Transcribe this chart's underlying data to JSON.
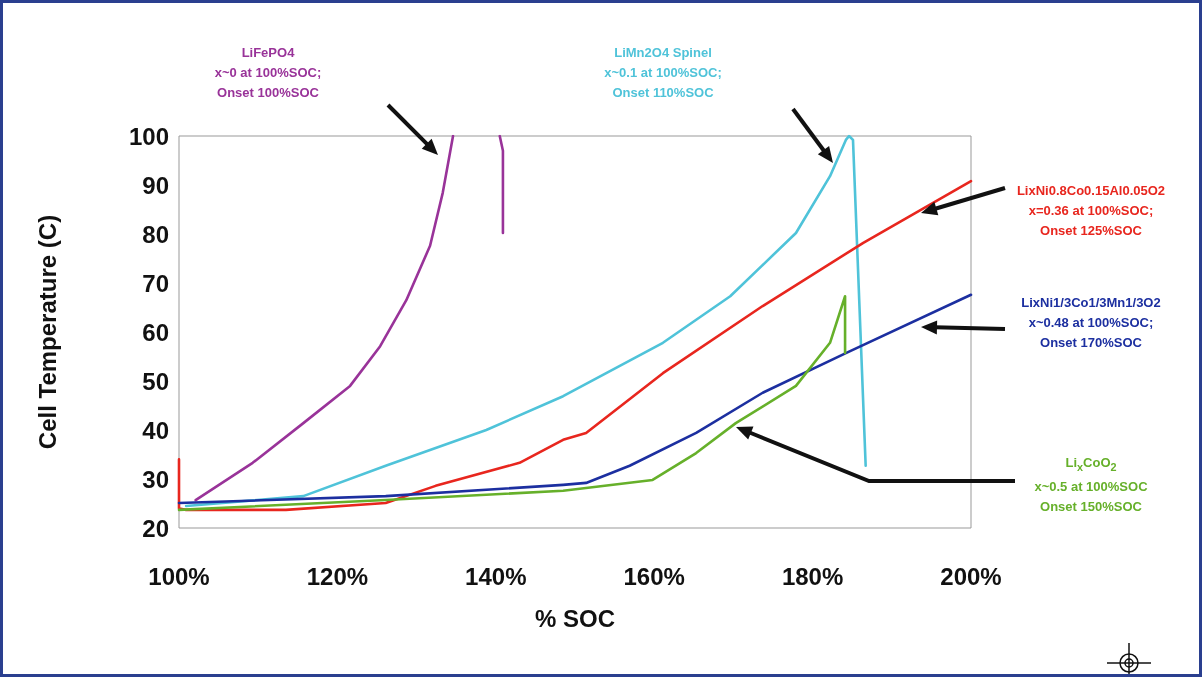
{
  "chart_data": {
    "type": "line",
    "xlabel": "% SOC",
    "ylabel": "Cell Temperature (C)",
    "xlim": [
      100,
      200
    ],
    "xticks": [
      {
        "value": 100,
        "label": "100%"
      },
      {
        "value": 120,
        "label": "120%"
      },
      {
        "value": 140,
        "label": "140%"
      },
      {
        "value": 160,
        "label": "160%"
      },
      {
        "value": 180,
        "label": "180%"
      },
      {
        "value": 200,
        "label": "200%"
      }
    ],
    "ylim": [
      20,
      100
    ],
    "yticks": [
      20,
      30,
      40,
      50,
      60,
      70,
      80,
      90,
      100
    ],
    "grid": false,
    "series": [
      {
        "color": "#993399",
        "x": [
          102.1,
          109.3,
          115.7,
          121.6,
          125.4,
          128.7,
          131.7,
          133.3,
          134.6,
          137,
          140.5,
          140.9,
          140.9
        ],
        "values": [
          25.7,
          33.3,
          41.4,
          49,
          57.1,
          66.5,
          77.6,
          88.4,
          100,
          null,
          100,
          97,
          80.2
        ]
      },
      {
        "color": "#4fc3d9",
        "x": [
          100.9,
          115.7,
          126.1,
          138.8,
          148.5,
          161.1,
          169.6,
          177.9,
          182.2,
          184.2,
          184.6,
          185.1,
          186.7
        ],
        "values": [
          24.5,
          26.5,
          32.7,
          40,
          46.9,
          57.8,
          67.3,
          80.2,
          91.8,
          99.2,
          100,
          99.2,
          32.7
        ]
      },
      {
        "color": "#e8261e",
        "x": [
          100,
          100,
          100.9,
          113.5,
          126.1,
          132.4,
          143,
          148.5,
          151.4,
          161.1,
          173.7,
          186.4,
          200
        ],
        "values": [
          34,
          24,
          23.7,
          23.7,
          25.1,
          28.6,
          33.3,
          38,
          39.4,
          51.6,
          65.3,
          78.2,
          90.8
        ]
      },
      {
        "color": "#1c2fa0",
        "x": [
          100,
          126.1,
          148.5,
          151.4,
          156.9,
          165.3,
          173.7,
          184.2,
          200
        ],
        "values": [
          25.1,
          26.5,
          28.8,
          29.2,
          32.7,
          39.4,
          47.6,
          55.7,
          67.6
        ]
      },
      {
        "color": "#66b02a",
        "x": [
          100,
          126.1,
          148.5,
          159.8,
          165.3,
          170.3,
          177.9,
          182.2,
          184.1,
          184.1
        ],
        "values": [
          23.7,
          25.7,
          27.6,
          29.8,
          35.3,
          41.4,
          49,
          57.8,
          67.3,
          55.7
        ]
      }
    ],
    "annotations": [
      "LiFePO4\nx~0 at 100%SOC;\nOnset 100%SOC",
      "LiMn2O4 Spinel\nx~0.1 at 100%SOC;\nOnset 110%SOC",
      "LixNi0.8Co0.15Al0.05O2\nx=0.36 at 100%SOC;\nOnset 125%SOC",
      "LixNi1/3Co1/3Mn1/3O2\nx~0.48 at 100%SOC;\nOnset 170%SOC",
      "Li$_{x}$CoO$_{2}$\nx~0.5 at 100%SOC\nOnset 150%SOC"
    ]
  }
}
